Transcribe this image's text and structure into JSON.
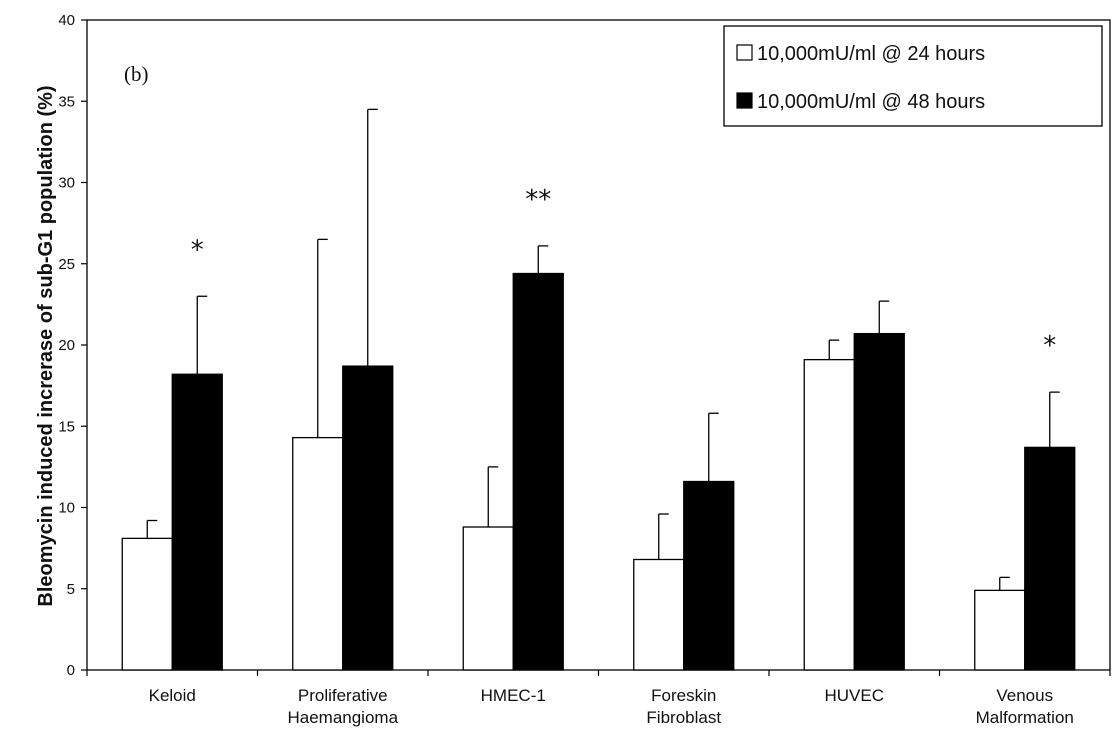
{
  "chart_data": {
    "type": "bar",
    "panel_label": "(b)",
    "ylabel": "Bleomycin induced increrase of sub-G1 population (%)",
    "xlabel": "",
    "ylim": [
      0,
      40
    ],
    "yticks": [
      0,
      5,
      10,
      15,
      20,
      25,
      30,
      35,
      40
    ],
    "grid": false,
    "legend_position": "top-right",
    "categories": [
      [
        "Keloid"
      ],
      [
        "Proliferative",
        "Haemangioma"
      ],
      [
        "HMEC-1"
      ],
      [
        "Foreskin",
        "Fibroblast"
      ],
      [
        "HUVEC"
      ],
      [
        "Venous",
        "Malformation"
      ]
    ],
    "series": [
      {
        "name": "10,000mU/ml @ 24 hours",
        "color": "#ffffff",
        "values": [
          8.1,
          14.3,
          8.8,
          6.8,
          19.1,
          4.9
        ],
        "errors": [
          1.1,
          12.2,
          3.7,
          2.8,
          1.2,
          0.8
        ]
      },
      {
        "name": "10,000mU/ml @ 48 hours",
        "color": "#000000",
        "values": [
          18.2,
          18.7,
          24.4,
          11.6,
          20.7,
          13.7
        ],
        "errors": [
          4.8,
          15.8,
          1.7,
          4.2,
          2.0,
          3.4
        ]
      }
    ],
    "significance": [
      "*",
      "",
      "**",
      "",
      "",
      "*"
    ]
  }
}
